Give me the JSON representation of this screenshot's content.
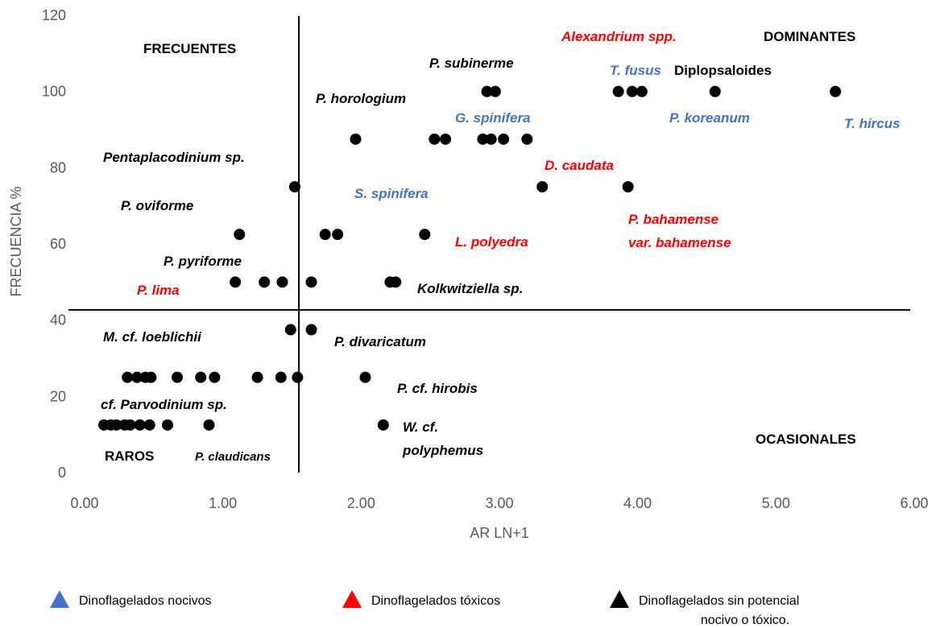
{
  "chart_data": {
    "type": "scatter",
    "xlabel": "AR LN+1",
    "ylabel": "FRECUENCIA %",
    "xlim": [
      0,
      6
    ],
    "ylim": [
      0,
      120
    ],
    "xticks": [
      {
        "value": 0,
        "label": "0.00"
      },
      {
        "value": 1,
        "label": "1.00"
      },
      {
        "value": 2,
        "label": "2.00"
      },
      {
        "value": 3,
        "label": "3.00"
      },
      {
        "value": 4,
        "label": "4.00"
      },
      {
        "value": 5,
        "label": "5.00"
      },
      {
        "value": 6,
        "label": "6.00"
      }
    ],
    "yticks": [
      0,
      20,
      40,
      60,
      80,
      100,
      120
    ],
    "grid": false,
    "color": "#000000",
    "quadrant_lines": {
      "x": 1.55,
      "y": 42.7
    },
    "x": [
      2.91,
      2.97,
      3.86,
      3.96,
      4.03,
      4.56,
      5.43,
      1.96,
      2.53,
      2.61,
      2.88,
      2.94,
      3.03,
      3.2,
      1.52,
      3.31,
      3.93,
      1.12,
      1.74,
      1.83,
      2.46,
      1.09,
      1.3,
      1.43,
      1.64,
      2.21,
      2.25,
      1.49,
      1.64,
      0.31,
      0.38,
      0.44,
      0.48,
      0.67,
      0.84,
      0.94,
      1.25,
      1.42,
      1.54,
      2.03,
      0.14,
      0.19,
      0.23,
      0.29,
      0.33,
      0.4,
      0.47,
      0.6,
      0.9,
      2.16
    ],
    "values": [
      100,
      100,
      100,
      100,
      100,
      100,
      100,
      87.5,
      87.5,
      87.5,
      87.5,
      87.5,
      87.5,
      87.5,
      75,
      75,
      75,
      62.5,
      62.5,
      62.5,
      62.5,
      50,
      50,
      50,
      50,
      50,
      50,
      37.5,
      37.5,
      25,
      25,
      25,
      25,
      25,
      25,
      25,
      25,
      25,
      25,
      25,
      12.5,
      12.5,
      12.5,
      12.5,
      12.5,
      12.5,
      12.5,
      12.5,
      12.5,
      12.5
    ],
    "annotations": [
      {
        "lines": [
          "FRECUENTES"
        ],
        "color": "#000000",
        "italic": false
      },
      {
        "lines": [
          "DOMINANTES"
        ],
        "color": "#000000",
        "italic": false
      },
      {
        "lines": [
          "Alexandrium spp."
        ],
        "color": "#ff0000",
        "italic": true
      },
      {
        "lines": [
          "P. subinerme"
        ],
        "color": "#000000",
        "italic": true
      },
      {
        "lines": [
          "T. fusus"
        ],
        "color": "#4472c4",
        "italic": true
      },
      {
        "lines": [
          "Diplopsaloides"
        ],
        "color": "#000000",
        "italic": false
      },
      {
        "lines": [
          "P. horologium"
        ],
        "color": "#000000",
        "italic": true
      },
      {
        "lines": [
          "G. spinifera"
        ],
        "color": "#4472c4",
        "italic": true
      },
      {
        "lines": [
          "P. koreanum"
        ],
        "color": "#4472c4",
        "italic": true
      },
      {
        "lines": [
          "T. hircus"
        ],
        "color": "#4472c4",
        "italic": true
      },
      {
        "lines": [
          "Pentaplacodinium sp."
        ],
        "color": "#000000",
        "italic": true
      },
      {
        "lines": [
          "D. caudata"
        ],
        "color": "#ff0000",
        "italic": true
      },
      {
        "lines": [
          "S. spinifera"
        ],
        "color": "#4472c4",
        "italic": true
      },
      {
        "lines": [
          "P. oviforme"
        ],
        "color": "#000000",
        "italic": true
      },
      {
        "lines": [
          "P. bahamense",
          "var. bahamense"
        ],
        "color": "#ff0000",
        "italic": true
      },
      {
        "lines": [
          "L. polyedra"
        ],
        "color": "#ff0000",
        "italic": true
      },
      {
        "lines": [
          "P. pyriforme"
        ],
        "color": "#000000",
        "italic": true
      },
      {
        "lines": [
          "P. lima"
        ],
        "color": "#ff0000",
        "italic": true
      },
      {
        "lines": [
          "Kolkwitziella sp."
        ],
        "color": "#000000",
        "italic": true
      },
      {
        "lines": [
          "M. cf. loeblichii"
        ],
        "color": "#000000",
        "italic": true
      },
      {
        "lines": [
          "P. divaricatum"
        ],
        "color": "#000000",
        "italic": true
      },
      {
        "lines": [
          "P. cf. hirobis"
        ],
        "color": "#000000",
        "italic": true
      },
      {
        "lines": [
          "cf. Parvodinium sp."
        ],
        "color": "#000000",
        "italic": true
      },
      {
        "lines": [
          "W. cf.",
          "polyphemus"
        ],
        "color": "#000000",
        "italic": true
      },
      {
        "lines": [
          "OCASIONALES"
        ],
        "color": "#000000",
        "italic": false
      },
      {
        "lines": [
          "RAROS"
        ],
        "color": "#000000",
        "italic": false
      },
      {
        "lines": [
          "P. claudicans"
        ],
        "color": "#000000",
        "italic": true
      }
    ],
    "legend": [
      {
        "lines": [
          "Dinoflagelados nocivos"
        ],
        "color": "#4472c4"
      },
      {
        "lines": [
          "Dinoflagelados tóxicos"
        ],
        "color": "#ff0000"
      },
      {
        "lines": [
          "Dinoflagelados sin potencial",
          "nocivo o tóxico."
        ],
        "color": "#000000"
      }
    ]
  }
}
